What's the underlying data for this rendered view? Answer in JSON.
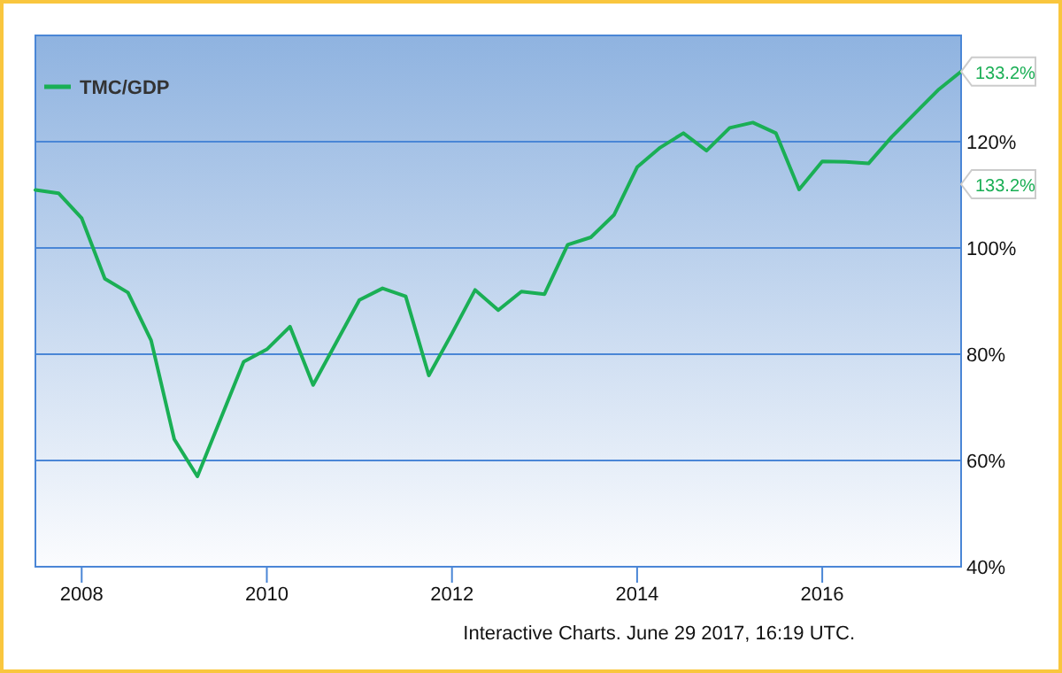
{
  "chart_data": {
    "type": "line",
    "x": [
      2007.5,
      2007.75,
      2008,
      2008.25,
      2008.5,
      2008.75,
      2009,
      2009.25,
      2009.5,
      2009.75,
      2010,
      2010.25,
      2010.5,
      2010.75,
      2011,
      2011.25,
      2011.5,
      2011.75,
      2012,
      2012.25,
      2012.5,
      2012.75,
      2013,
      2013.25,
      2013.5,
      2013.75,
      2014,
      2014.25,
      2014.5,
      2014.75,
      2015,
      2015.25,
      2015.5,
      2015.75,
      2016,
      2016.25,
      2016.5,
      2016.75,
      2017,
      2017.25,
      2017.5
    ],
    "series": [
      {
        "name": "TMC/GDP",
        "color": "#1aaf55",
        "values": [
          110.9,
          110.3,
          105.6,
          94.2,
          91.6,
          82.6,
          64,
          57,
          67.8,
          78.6,
          80.9,
          85.2,
          74.2,
          82.2,
          90.2,
          92.4,
          90.9,
          76,
          83.9,
          92.1,
          88.3,
          91.8,
          91.3,
          100.6,
          102,
          106.2,
          115.2,
          118.9,
          121.6,
          118.3,
          122.6,
          123.6,
          121.6,
          111,
          116.3,
          116.2,
          115.9,
          120.9,
          125.3,
          129.7,
          133.2
        ]
      }
    ],
    "xlim": [
      2007.5,
      2017.5
    ],
    "xticks": [
      2008,
      2010,
      2012,
      2014,
      2016
    ],
    "ylim": [
      40,
      140
    ],
    "yticks": [
      {
        "value": 40,
        "label": "40%"
      },
      {
        "value": 60,
        "label": "60%"
      },
      {
        "value": 80,
        "label": "80%"
      },
      {
        "value": 100,
        "label": "100%"
      },
      {
        "value": 120,
        "label": "120%"
      }
    ],
    "grid": "y",
    "legend": "top left",
    "annotations": [
      {
        "text": "133.2%",
        "x": 2017.5,
        "y": 133.2
      },
      "133.2%",
      "Interactive Charts. June 29 2017, 16:19 UTC."
    ]
  }
}
